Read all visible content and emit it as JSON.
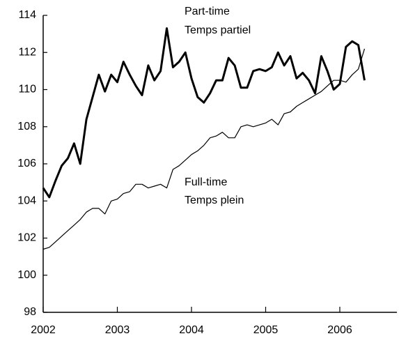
{
  "chart_data": {
    "type": "line",
    "annotations": [
      "Part-time",
      "Temps partiel",
      "Full-time",
      "Temps plein"
    ],
    "x": [
      2002,
      2002.083,
      2002.167,
      2002.25,
      2002.333,
      2002.417,
      2002.5,
      2002.583,
      2002.667,
      2002.75,
      2002.833,
      2002.917,
      2003,
      2003.083,
      2003.167,
      2003.25,
      2003.333,
      2003.417,
      2003.5,
      2003.583,
      2003.667,
      2003.75,
      2003.833,
      2003.917,
      2004,
      2004.083,
      2004.167,
      2004.25,
      2004.333,
      2004.417,
      2004.5,
      2004.583,
      2004.667,
      2004.75,
      2004.833,
      2004.917,
      2005,
      2005.083,
      2005.167,
      2005.25,
      2005.333,
      2005.417,
      2005.5,
      2005.583,
      2005.667,
      2005.75,
      2005.833,
      2005.917,
      2006,
      2006.083,
      2006.167,
      2006.25,
      2006.333
    ],
    "series": [
      {
        "name": "Part-time",
        "color": "#000000",
        "width": 3,
        "values": [
          104.7,
          104.2,
          105.1,
          105.9,
          106.3,
          107.1,
          106.0,
          108.4,
          109.6,
          110.8,
          109.9,
          110.8,
          110.4,
          111.5,
          110.8,
          110.2,
          109.7,
          111.3,
          110.5,
          111.0,
          113.3,
          111.2,
          111.5,
          112.0,
          110.6,
          109.6,
          109.3,
          109.8,
          110.5,
          110.5,
          111.7,
          111.3,
          110.1,
          110.1,
          111.0,
          111.1,
          111.0,
          111.2,
          112.0,
          111.3,
          111.8,
          110.6,
          110.9,
          110.5,
          109.8,
          111.8,
          111.0,
          110.0,
          110.3,
          112.3,
          112.6,
          112.4,
          110.5
        ]
      },
      {
        "name": "Full-time",
        "color": "#000000",
        "width": 1.2,
        "values": [
          101.4,
          101.5,
          101.8,
          102.1,
          102.4,
          102.7,
          103.0,
          103.4,
          103.6,
          103.6,
          103.3,
          104.0,
          104.1,
          104.4,
          104.5,
          104.9,
          104.9,
          104.7,
          104.8,
          104.9,
          104.7,
          105.7,
          105.9,
          106.2,
          106.5,
          106.7,
          107.0,
          107.4,
          107.5,
          107.7,
          107.4,
          107.4,
          108.0,
          108.1,
          108.0,
          108.1,
          108.2,
          108.4,
          108.1,
          108.7,
          108.8,
          109.1,
          109.3,
          109.5,
          109.7,
          109.9,
          110.2,
          110.5,
          110.5,
          110.4,
          110.8,
          111.1,
          112.2
        ]
      }
    ],
    "xlim": [
      2002,
      2006.77
    ],
    "xticks": [
      2002,
      2003,
      2004,
      2005,
      2006
    ],
    "ylim": [
      98,
      114
    ],
    "yticks": [
      98,
      100,
      102,
      104,
      106,
      108,
      110,
      112,
      114
    ]
  }
}
